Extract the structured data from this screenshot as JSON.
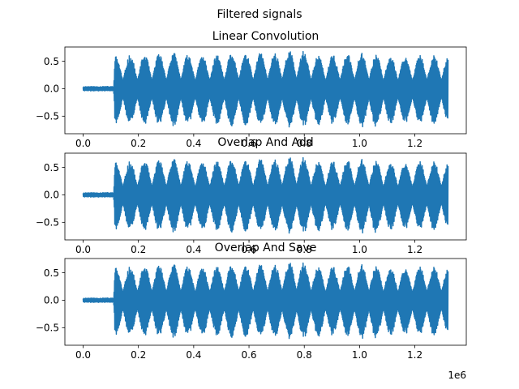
{
  "figure": {
    "suptitle": "Filtered signals"
  },
  "chart_data": [
    {
      "type": "line",
      "title": "Linear Convolution",
      "xlabel": "",
      "ylabel": "",
      "x_offset_label": "1e6",
      "xlim": [
        -0.066,
        1.386
      ],
      "ylim": [
        -0.82,
        0.76
      ],
      "xticks": [
        0.0,
        0.2,
        0.4,
        0.6,
        0.8,
        1.0,
        1.2
      ],
      "xtick_labels": [
        "0.0",
        "0.2",
        "0.4",
        "0.6",
        "0.8",
        "1.0",
        "1.2"
      ],
      "yticks": [
        0.5,
        0.0,
        -0.5
      ],
      "ytick_labels": [
        "0.5",
        "0.0",
        "−0.5"
      ],
      "series": [
        {
          "color": "#1f77b4",
          "x_range": [
            0.0,
            1.32
          ],
          "envelope": {
            "x": [
              0.0,
              0.11,
              0.115,
              0.12,
              0.2,
              0.3,
              0.33,
              0.4,
              0.5,
              0.55,
              0.6,
              0.7,
              0.78,
              0.85,
              0.95,
              1.0,
              1.05,
              1.1,
              1.2,
              1.25,
              1.32
            ],
            "upper": [
              0.04,
              0.04,
              0.57,
              0.6,
              0.62,
              0.64,
              0.66,
              0.6,
              0.62,
              0.66,
              0.64,
              0.66,
              0.72,
              0.6,
              0.62,
              0.68,
              0.62,
              0.6,
              0.6,
              0.62,
              0.6
            ],
            "lower": [
              -0.04,
              -0.04,
              -0.6,
              -0.66,
              -0.64,
              -0.66,
              -0.7,
              -0.64,
              -0.64,
              -0.7,
              -0.66,
              -0.68,
              -0.72,
              -0.66,
              -0.64,
              -0.7,
              -0.72,
              -0.64,
              -0.62,
              -0.66,
              -0.62
            ]
          }
        }
      ]
    },
    {
      "type": "line",
      "title": "Overlap And Add",
      "xlabel": "",
      "ylabel": "",
      "x_offset_label": "1e6",
      "xlim": [
        -0.066,
        1.386
      ],
      "ylim": [
        -0.82,
        0.76
      ],
      "xticks": [
        0.0,
        0.2,
        0.4,
        0.6,
        0.8,
        1.0,
        1.2
      ],
      "xtick_labels": [
        "0.0",
        "0.2",
        "0.4",
        "0.6",
        "0.8",
        "1.0",
        "1.2"
      ],
      "yticks": [
        0.5,
        0.0,
        -0.5
      ],
      "ytick_labels": [
        "0.5",
        "0.0",
        "−0.5"
      ],
      "series": [
        {
          "color": "#1f77b4",
          "x_range": [
            0.0,
            1.32
          ],
          "envelope": {
            "x": [
              0.0,
              0.11,
              0.115,
              0.12,
              0.2,
              0.3,
              0.33,
              0.4,
              0.5,
              0.55,
              0.6,
              0.7,
              0.78,
              0.85,
              0.95,
              1.0,
              1.05,
              1.1,
              1.2,
              1.25,
              1.32
            ],
            "upper": [
              0.04,
              0.04,
              0.57,
              0.6,
              0.62,
              0.64,
              0.66,
              0.6,
              0.62,
              0.66,
              0.64,
              0.66,
              0.72,
              0.6,
              0.62,
              0.68,
              0.62,
              0.6,
              0.6,
              0.62,
              0.6
            ],
            "lower": [
              -0.04,
              -0.04,
              -0.6,
              -0.66,
              -0.64,
              -0.66,
              -0.7,
              -0.64,
              -0.64,
              -0.7,
              -0.66,
              -0.68,
              -0.72,
              -0.66,
              -0.64,
              -0.7,
              -0.72,
              -0.64,
              -0.62,
              -0.66,
              -0.62
            ]
          }
        }
      ]
    },
    {
      "type": "line",
      "title": "Overlap And Save",
      "xlabel": "",
      "ylabel": "",
      "x_offset_label": "1e6",
      "xlim": [
        -0.066,
        1.386
      ],
      "ylim": [
        -0.82,
        0.76
      ],
      "xticks": [
        0.0,
        0.2,
        0.4,
        0.6,
        0.8,
        1.0,
        1.2
      ],
      "xtick_labels": [
        "0.0",
        "0.2",
        "0.4",
        "0.6",
        "0.8",
        "1.0",
        "1.2"
      ],
      "yticks": [
        0.5,
        0.0,
        -0.5
      ],
      "ytick_labels": [
        "0.5",
        "0.0",
        "−0.5"
      ],
      "series": [
        {
          "color": "#1f77b4",
          "x_range": [
            0.0,
            1.32
          ],
          "envelope": {
            "x": [
              0.0,
              0.11,
              0.115,
              0.12,
              0.2,
              0.3,
              0.33,
              0.4,
              0.5,
              0.55,
              0.6,
              0.7,
              0.78,
              0.85,
              0.95,
              1.0,
              1.05,
              1.1,
              1.2,
              1.25,
              1.32
            ],
            "upper": [
              0.04,
              0.04,
              0.57,
              0.6,
              0.62,
              0.64,
              0.66,
              0.6,
              0.62,
              0.66,
              0.64,
              0.66,
              0.72,
              0.6,
              0.62,
              0.68,
              0.62,
              0.6,
              0.6,
              0.62,
              0.6
            ],
            "lower": [
              -0.04,
              -0.04,
              -0.6,
              -0.66,
              -0.64,
              -0.66,
              -0.7,
              -0.64,
              -0.64,
              -0.7,
              -0.66,
              -0.68,
              -0.72,
              -0.66,
              -0.64,
              -0.7,
              -0.72,
              -0.64,
              -0.62,
              -0.66,
              -0.62
            ]
          }
        }
      ]
    }
  ]
}
